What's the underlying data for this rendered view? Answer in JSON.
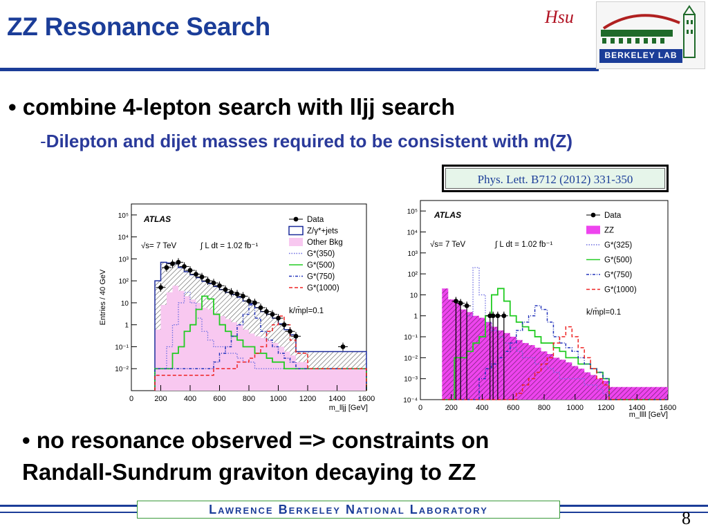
{
  "slide": {
    "title": "ZZ Resonance Search",
    "author": "Hsu",
    "logo_text": "BERKELEY LAB",
    "bullet1": "• combine 4-lepton search with lljj search",
    "sub1_dash": "-",
    "sub1": "Dilepton and dijet masses required to be consistent with m(Z)",
    "reference": "Phys. Lett. B712 (2012) 331-350",
    "bullet2_line1": "• no resonance observed => constraints on",
    "bullet2_line2": "Randall-Sundrum graviton decaying to ZZ",
    "footer": "Lawrence Berkeley National Laboratory",
    "page_number": "8"
  },
  "chart_data": [
    {
      "type": "line",
      "ylabel": "Entries / 40 GeV",
      "xlabel": "m_lljj [GeV]",
      "xlim": [
        0,
        1600
      ],
      "ylim_log10": [
        -3,
        5.5
      ],
      "y_scale": "log",
      "x_ticks": [
        "0",
        "200",
        "400",
        "600",
        "800",
        "1000",
        "1200",
        "1400",
        "1600"
      ],
      "y_ticks": [
        "10⁻²",
        "10⁻¹",
        "1",
        "10",
        "10²",
        "10³",
        "10⁴",
        "10⁵"
      ],
      "annotations": [
        "ATLAS",
        "√s= 7 TeV",
        "∫ L dt = 1.02 fb⁻¹",
        "k/m̄pl=0.1"
      ],
      "legend": [
        "Data",
        "Z/γ*+jets",
        "Other Bkg",
        "G*(350)",
        "G*(500)",
        "G*(750)",
        "G*(1000)"
      ],
      "colors": {
        "data": "#000000",
        "zjets": "#1a2a9a",
        "other": "#f8c8f0",
        "g350": "#6a6ae0",
        "g500": "#22cc22",
        "g750": "#2233bb",
        "g1000": "#ee2222"
      },
      "bin_edges": [
        160,
        200,
        240,
        280,
        320,
        360,
        400,
        440,
        480,
        520,
        560,
        600,
        640,
        680,
        720,
        760,
        800,
        840,
        880,
        920,
        960,
        1000,
        1040,
        1080,
        1120,
        1200,
        1600
      ],
      "data_x": [
        200,
        240,
        280,
        320,
        360,
        400,
        440,
        480,
        520,
        560,
        600,
        640,
        680,
        720,
        760,
        800,
        840,
        880,
        920,
        960,
        1000,
        1040,
        1080,
        1120,
        1440
      ],
      "data_y": [
        50,
        400,
        600,
        700,
        450,
        300,
        200,
        150,
        100,
        80,
        60,
        40,
        30,
        25,
        20,
        12,
        10,
        6,
        4,
        3,
        2,
        1,
        0.5,
        0.3,
        0.1
      ],
      "zjets": [
        100,
        700,
        650,
        600,
        400,
        260,
        190,
        140,
        95,
        75,
        55,
        40,
        30,
        24,
        18,
        12,
        9,
        6,
        4,
        3,
        2,
        1.1,
        0.6,
        0.35,
        0.06,
        0.06
      ],
      "other_bkg": [
        0.6,
        8,
        30,
        60,
        35,
        20,
        14,
        10,
        6,
        5,
        3.5,
        2.5,
        1.8,
        1.3,
        1,
        0.6,
        0.4,
        0.3,
        0.25,
        0.2,
        0.15,
        0.1,
        0.06,
        0.04,
        0.02,
        0.01
      ],
      "g350": [
        0.01,
        0.01,
        0.1,
        1,
        10,
        30,
        10,
        2,
        0.5,
        0.2,
        0.1,
        0.1,
        0.05,
        0.05,
        0.03,
        0.02,
        0.02,
        0.01,
        0.01,
        0.01,
        0.01,
        0.01,
        0.01,
        0.01,
        0.01,
        0.01
      ],
      "g500": [
        0.01,
        0.01,
        0.01,
        0.05,
        0.1,
        0.5,
        1,
        5,
        20,
        15,
        3,
        1,
        0.5,
        0.3,
        0.2,
        0.1,
        0.1,
        0.05,
        0.05,
        0.03,
        0.02,
        0.02,
        0.01,
        0.01,
        0.01,
        0.01
      ],
      "g750": [
        0.01,
        0.01,
        0.01,
        0.01,
        0.01,
        0.01,
        0.01,
        0.01,
        0.01,
        0.01,
        0.02,
        0.05,
        0.1,
        0.3,
        1,
        3,
        8,
        2,
        0.5,
        0.2,
        0.1,
        0.05,
        0.03,
        0.02,
        0.01,
        0.01
      ],
      "g1000": [
        0.005,
        0.005,
        0.005,
        0.005,
        0.005,
        0.005,
        0.005,
        0.005,
        0.005,
        0.005,
        0.01,
        0.01,
        0.01,
        0.01,
        0.02,
        0.02,
        0.03,
        0.05,
        0.1,
        0.5,
        1,
        2.5,
        1,
        0.2,
        0.05,
        0.01
      ]
    },
    {
      "type": "line",
      "xlabel": "m_llll [GeV]",
      "xlim": [
        0,
        1600
      ],
      "ylim_log10": [
        -4,
        5.5
      ],
      "y_scale": "log",
      "x_ticks": [
        "0",
        "200",
        "400",
        "600",
        "800",
        "1000",
        "1200",
        "1400",
        "1600"
      ],
      "y_ticks": [
        "10⁻⁴",
        "10⁻³",
        "10⁻²",
        "10⁻¹",
        "1",
        "10",
        "10²",
        "10³",
        "10⁴",
        "10⁵"
      ],
      "annotations": [
        "ATLAS",
        "√s= 7 TeV",
        "∫ L dt = 1.02 fb⁻¹",
        "k/m̄pl=0.1"
      ],
      "legend": [
        "Data",
        "ZZ",
        "G*(325)",
        "G*(500)",
        "G*(750)",
        "G*(1000)"
      ],
      "colors": {
        "data": "#000000",
        "zz": "#ee44ee",
        "g325": "#6a6ae0",
        "g500": "#22cc22",
        "g750": "#2233bb",
        "g1000": "#ee2222"
      },
      "bin_edges": [
        140,
        180,
        220,
        260,
        300,
        340,
        380,
        420,
        460,
        500,
        540,
        580,
        620,
        660,
        700,
        740,
        780,
        820,
        860,
        900,
        940,
        980,
        1020,
        1060,
        1100,
        1140,
        1180,
        1220,
        1600
      ],
      "data_x": [
        230,
        260,
        300,
        450,
        470,
        500,
        540
      ],
      "data_y": [
        5,
        4,
        3,
        1,
        1,
        1,
        1
      ],
      "zz": [
        20,
        6,
        4,
        2,
        1.5,
        1,
        0.8,
        0.5,
        0.3,
        0.2,
        0.15,
        0.1,
        0.07,
        0.05,
        0.04,
        0.03,
        0.02,
        0.015,
        0.01,
        0.008,
        0.006,
        0.004,
        0.003,
        0.002,
        0.0015,
        0.001,
        0.0008,
        0.0004
      ],
      "g325": [
        0.0001,
        0.0001,
        0.0001,
        0.01,
        1,
        200,
        10,
        0.5,
        0.2,
        0.1,
        0.05,
        0.03,
        0.02,
        0.01,
        0.01,
        0.005,
        0.005,
        0.003,
        0.002,
        0.001,
        0.001,
        0.001,
        0.001,
        0.0005,
        0.0005,
        0.0003,
        0.0002,
        0.0001
      ],
      "g500": [
        0.0001,
        0.0001,
        0.01,
        0.01,
        0.02,
        0.05,
        0.1,
        1,
        10,
        20,
        5,
        1,
        0.5,
        0.3,
        0.2,
        0.1,
        0.05,
        0.05,
        0.03,
        0.02,
        0.01,
        0.01,
        0.005,
        0.005,
        0.003,
        0.002,
        0.001,
        0.0001
      ],
      "g750": [
        0.0001,
        0.0001,
        0.0001,
        0.0001,
        0.0001,
        0.0001,
        0.001,
        0.003,
        0.005,
        0.01,
        0.02,
        0.05,
        0.2,
        0.5,
        1,
        3,
        2,
        0.5,
        0.1,
        0.05,
        0.03,
        0.02,
        0.01,
        0.005,
        0.003,
        0.002,
        0.001,
        0.0001
      ],
      "g1000": [
        0.0001,
        0.0001,
        0.0001,
        0.0001,
        0.0001,
        0.0001,
        0.0001,
        0.0001,
        0.0001,
        0.0001,
        0.0001,
        0.0001,
        0.0002,
        0.0005,
        0.001,
        0.002,
        0.005,
        0.01,
        0.05,
        0.1,
        0.3,
        0.1,
        0.03,
        0.01,
        0.003,
        0.001,
        0.0005,
        0.0001
      ]
    }
  ]
}
